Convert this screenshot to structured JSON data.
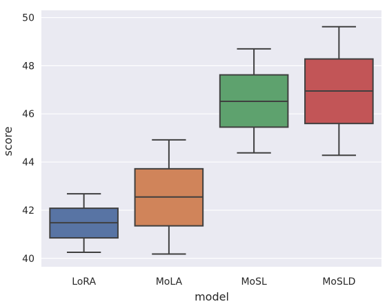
{
  "chart_data": {
    "type": "box",
    "xlabel": "model",
    "ylabel": "score",
    "ylim": [
      39.65,
      50.3
    ],
    "yticks": [
      40,
      42,
      44,
      46,
      48,
      50
    ],
    "grid": true,
    "background": "#eaeaf2",
    "categories": [
      "LoRA",
      "MoLA",
      "MoSL",
      "MoSLD"
    ],
    "colors": [
      "#5874a4",
      "#d0845a",
      "#5ea26e",
      "#c25557"
    ],
    "boxes": [
      {
        "name": "LoRA",
        "whisker_low": 40.25,
        "q1": 40.85,
        "median": 41.48,
        "q3": 42.08,
        "whisker_high": 42.68
      },
      {
        "name": "MoLA",
        "whisker_low": 40.18,
        "q1": 41.35,
        "median": 42.55,
        "q3": 43.72,
        "whisker_high": 44.92
      },
      {
        "name": "MoSL",
        "whisker_low": 44.38,
        "q1": 45.45,
        "median": 46.52,
        "q3": 47.62,
        "whisker_high": 48.7
      },
      {
        "name": "MoSLD",
        "whisker_low": 44.28,
        "q1": 45.6,
        "median": 46.95,
        "q3": 48.28,
        "whisker_high": 49.62
      }
    ]
  }
}
